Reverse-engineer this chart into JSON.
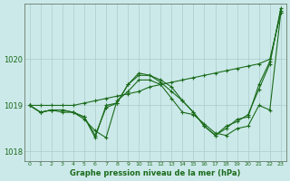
{
  "xlabel": "Graphe pression niveau de la mer (hPa)",
  "background_color": "#cce9e9",
  "grid_color": "#aacccc",
  "line_color": "#1a6b1a",
  "text_color": "#1a6b1a",
  "ylim": [
    1017.8,
    1021.2
  ],
  "yticks": [
    1018,
    1019,
    1020
  ],
  "xticks": [
    0,
    1,
    2,
    3,
    4,
    5,
    6,
    7,
    8,
    9,
    10,
    11,
    12,
    13,
    14,
    15,
    16,
    17,
    18,
    19,
    20,
    21,
    22,
    23
  ],
  "series": [
    [
      1019.0,
      1018.85,
      1018.9,
      1018.9,
      1018.85,
      1018.75,
      1018.35,
      1018.95,
      1019.05,
      1019.45,
      1019.65,
      1019.65,
      1019.5,
      1019.3,
      1019.1,
      1018.85,
      1018.55,
      1018.35,
      1018.55,
      1018.65,
      1018.8,
      1019.35,
      1019.9,
      1021.1
    ],
    [
      1019.0,
      1018.85,
      1018.9,
      1018.9,
      1018.85,
      1018.7,
      1018.45,
      1018.3,
      1019.1,
      1019.3,
      1019.55,
      1019.55,
      1019.45,
      1019.15,
      1018.85,
      1018.8,
      1018.6,
      1018.4,
      1018.35,
      1018.5,
      1018.55,
      1019.0,
      1018.9,
      1021.0
    ],
    [
      1019.0,
      1018.85,
      1018.9,
      1018.85,
      1018.85,
      1018.75,
      1018.3,
      1019.0,
      1019.05,
      1019.45,
      1019.7,
      1019.65,
      1019.55,
      1019.4,
      1019.1,
      1018.85,
      1018.55,
      1018.35,
      1018.5,
      1018.7,
      1018.75,
      1019.45,
      1019.95,
      1021.05
    ],
    [
      1019.0,
      1019.0,
      1019.0,
      1019.0,
      1019.0,
      1019.05,
      1019.1,
      1019.15,
      1019.2,
      1019.25,
      1019.3,
      1019.4,
      1019.45,
      1019.5,
      1019.55,
      1019.6,
      1019.65,
      1019.7,
      1019.75,
      1019.8,
      1019.85,
      1019.9,
      1020.0,
      1021.0
    ]
  ]
}
